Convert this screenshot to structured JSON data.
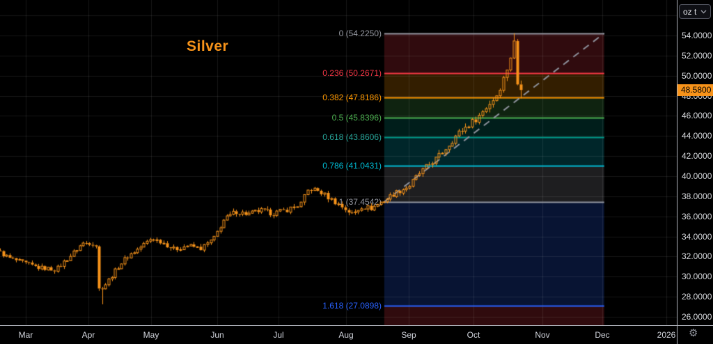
{
  "window": {
    "unit_selector": {
      "label": "oz t"
    }
  },
  "chart": {
    "title": "Silver"
  },
  "icons": {
    "axis_settings_gear": "⚙"
  },
  "price_axis": {
    "ticks": [
      "54.0000",
      "52.0000",
      "50.0000",
      "48.0000",
      "46.0000",
      "44.0000",
      "42.0000",
      "40.0000",
      "38.0000",
      "36.0000",
      "34.0000",
      "32.0000",
      "30.0000",
      "28.0000",
      "26.0000"
    ],
    "tick_values": [
      54,
      52,
      50,
      48,
      46,
      44,
      42,
      40,
      38,
      36,
      34,
      32,
      30,
      28,
      26
    ],
    "last_price_label": "48.5800",
    "accent_color": "#f7931a"
  },
  "time_axis": {
    "months": [
      "Mar",
      "Apr",
      "May",
      "Jun",
      "Jul",
      "Aug",
      "Sep",
      "Oct",
      "Nov",
      "Dec"
    ],
    "year_label": "2026"
  },
  "chart_data": {
    "type": "candlestick",
    "title": "Silver",
    "unit": "oz t",
    "candle_color": "#f7931a",
    "candle_up_style": "hollow",
    "candle_down_style": "filled",
    "visible_price_range": [
      25.2,
      57.5
    ],
    "price_grid_step": 2,
    "grid": true,
    "last_price": 48.58,
    "months_visible": [
      "Mar",
      "Apr",
      "May",
      "Jun",
      "Jul",
      "Aug",
      "Sep",
      "Oct",
      "Nov",
      "Dec"
    ],
    "next_year_label": "2026",
    "fib_retracement": {
      "start_month_u": 5.61,
      "end_month_u": 9.03,
      "zone_opacity": 0.2,
      "below_last_zone_color": "#f23645",
      "trendline": {
        "from_price": 37.4542,
        "to_price": 54.225,
        "color": "#8f939e",
        "dashed": true
      },
      "levels": [
        {
          "ratio": "0",
          "value": 54.225,
          "label": "0 (54.2250)",
          "color": "#9598a1",
          "label_color": "#9598a1"
        },
        {
          "ratio": "0.236",
          "value": 50.2671,
          "label": "0.236 (50.2671)",
          "color": "#f23645",
          "label_color": "#f23645"
        },
        {
          "ratio": "0.382",
          "value": 47.8186,
          "label": "0.382 (47.8186)",
          "color": "#ff9800",
          "label_color": "#ff9800"
        },
        {
          "ratio": "0.5",
          "value": 45.8396,
          "label": "0.5 (45.8396)",
          "color": "#4caf50",
          "label_color": "#4caf50"
        },
        {
          "ratio": "0.618",
          "value": 43.8606,
          "label": "0.618 (43.8606)",
          "color": "#009688",
          "label_color": "#26a69a"
        },
        {
          "ratio": "0.786",
          "value": 41.0431,
          "label": "0.786 (41.0431)",
          "color": "#00bcd4",
          "label_color": "#00bcd4"
        },
        {
          "ratio": "1",
          "value": 37.4542,
          "label": "1 (37.4542)",
          "color": "#9598a1",
          "label_color": "#9598a1"
        },
        {
          "ratio": "1.618",
          "value": 27.0898,
          "label": "1.618 (27.0898)",
          "color": "#2962ff",
          "label_color": "#2962ff"
        }
      ]
    },
    "price_path_anchors": [
      [
        -0.41,
        32.4
      ],
      [
        -0.25,
        31.8
      ],
      [
        0.0,
        31.3
      ],
      [
        0.2,
        30.9
      ],
      [
        0.48,
        30.7
      ],
      [
        0.7,
        32.0
      ],
      [
        0.9,
        33.3
      ],
      [
        1.05,
        33.4
      ],
      [
        1.12,
        33.1
      ],
      [
        1.17,
        28.7
      ],
      [
        1.28,
        29.3
      ],
      [
        1.45,
        30.8
      ],
      [
        1.6,
        31.9
      ],
      [
        1.8,
        32.8
      ],
      [
        2.0,
        33.8
      ],
      [
        2.15,
        33.5
      ],
      [
        2.35,
        32.7
      ],
      [
        2.55,
        33.1
      ],
      [
        2.75,
        32.8
      ],
      [
        2.95,
        33.8
      ],
      [
        3.1,
        35.6
      ],
      [
        3.3,
        36.5
      ],
      [
        3.5,
        36.2
      ],
      [
        3.7,
        36.6
      ],
      [
        3.9,
        36.3
      ],
      [
        4.1,
        36.6
      ],
      [
        4.32,
        37.2
      ],
      [
        4.45,
        38.8
      ],
      [
        4.6,
        38.5
      ],
      [
        4.8,
        37.6
      ],
      [
        4.95,
        36.9
      ],
      [
        5.1,
        36.2
      ],
      [
        5.25,
        37.0
      ],
      [
        5.4,
        36.8
      ],
      [
        5.55,
        37.4
      ],
      [
        5.61,
        37.6
      ],
      [
        5.75,
        38.2
      ],
      [
        5.9,
        38.7
      ],
      [
        6.0,
        39.0
      ],
      [
        6.15,
        40.2
      ],
      [
        6.3,
        41.1
      ],
      [
        6.45,
        41.9
      ],
      [
        6.6,
        43.0
      ],
      [
        6.75,
        44.2
      ],
      [
        6.9,
        45.0
      ],
      [
        7.05,
        45.8
      ],
      [
        7.2,
        47.0
      ],
      [
        7.32,
        47.9
      ],
      [
        7.42,
        49.4
      ],
      [
        7.5,
        51.0
      ],
      [
        7.55,
        52.2
      ],
      [
        7.58,
        53.4
      ],
      [
        7.62,
        52.9
      ],
      [
        7.64,
        49.0
      ],
      [
        7.69,
        48.58
      ]
    ],
    "candle_count": 160,
    "path_u_range": [
      -0.41,
      7.69
    ],
    "noise_amp_frac": 0.007,
    "wick_events": [
      {
        "u": 1.22,
        "low": 27.25
      },
      {
        "u": 7.587,
        "high": 54.225
      },
      {
        "u": 7.69,
        "low": 47.75
      }
    ]
  }
}
